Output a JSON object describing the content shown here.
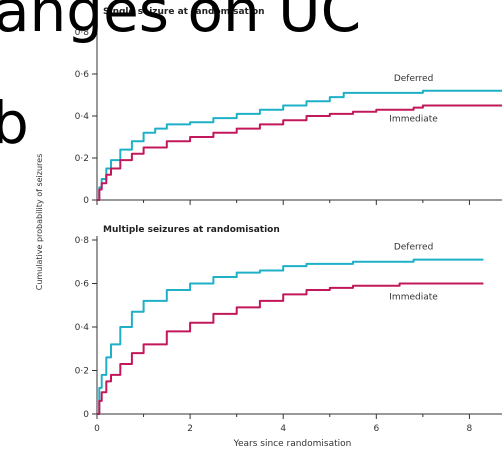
{
  "overlay": {
    "top_text": "anges on UC",
    "left_text": "b"
  },
  "colors": {
    "deferred": "#1fb0c8",
    "immediate": "#c2185b",
    "axis": "#333333",
    "text": "#333333"
  },
  "chart_data": [
    {
      "type": "line",
      "title": "Single seizure at randomisation",
      "ylabel": "Cumulative probability of seizures",
      "xlabel": "",
      "xlim": [
        0,
        8.7
      ],
      "ylim": [
        0,
        0.8
      ],
      "x_ticks": [
        0,
        2,
        4,
        6,
        8
      ],
      "y_ticks": [
        {
          "value": 0,
          "label": "0"
        },
        {
          "value": 0.2,
          "label": "0·2"
        },
        {
          "value": 0.4,
          "label": "0·4"
        },
        {
          "value": 0.6,
          "label": "0·6"
        },
        {
          "value": 0.8,
          "label": "0·8"
        }
      ],
      "series": [
        {
          "name": "Deferred",
          "color": "#1fb0c8",
          "points": [
            [
              0,
              0
            ],
            [
              0.05,
              0.06
            ],
            [
              0.1,
              0.1
            ],
            [
              0.2,
              0.15
            ],
            [
              0.3,
              0.19
            ],
            [
              0.5,
              0.24
            ],
            [
              0.75,
              0.28
            ],
            [
              1,
              0.32
            ],
            [
              1.25,
              0.34
            ],
            [
              1.5,
              0.36
            ],
            [
              2,
              0.37
            ],
            [
              2.5,
              0.39
            ],
            [
              3,
              0.41
            ],
            [
              3.5,
              0.43
            ],
            [
              4,
              0.45
            ],
            [
              4.5,
              0.47
            ],
            [
              5,
              0.49
            ],
            [
              5.3,
              0.51
            ],
            [
              6,
              0.51
            ],
            [
              7,
              0.52
            ],
            [
              8,
              0.52
            ],
            [
              8.7,
              0.52
            ]
          ]
        },
        {
          "name": "Immediate",
          "color": "#c2185b",
          "points": [
            [
              0,
              0
            ],
            [
              0.05,
              0.05
            ],
            [
              0.1,
              0.08
            ],
            [
              0.2,
              0.12
            ],
            [
              0.3,
              0.15
            ],
            [
              0.5,
              0.19
            ],
            [
              0.75,
              0.22
            ],
            [
              1,
              0.25
            ],
            [
              1.5,
              0.28
            ],
            [
              2,
              0.3
            ],
            [
              2.5,
              0.32
            ],
            [
              3,
              0.34
            ],
            [
              3.5,
              0.36
            ],
            [
              4,
              0.38
            ],
            [
              4.5,
              0.4
            ],
            [
              5,
              0.41
            ],
            [
              5.5,
              0.42
            ],
            [
              6,
              0.43
            ],
            [
              6.8,
              0.44
            ],
            [
              7,
              0.45
            ],
            [
              8,
              0.45
            ],
            [
              8.7,
              0.45
            ]
          ]
        }
      ]
    },
    {
      "type": "line",
      "title": "Multiple seizures at randomisation",
      "ylabel": "",
      "xlabel": "Years since randomisation",
      "xlim": [
        0,
        8.7
      ],
      "ylim": [
        0,
        0.8
      ],
      "x_ticks": [
        0,
        2,
        4,
        6,
        8
      ],
      "y_ticks": [
        {
          "value": 0,
          "label": "0"
        },
        {
          "value": 0.2,
          "label": "0·2"
        },
        {
          "value": 0.4,
          "label": "0·4"
        },
        {
          "value": 0.6,
          "label": "0·6"
        },
        {
          "value": 0.8,
          "label": "0·8"
        }
      ],
      "series": [
        {
          "name": "Deferred",
          "color": "#1fb0c8",
          "points": [
            [
              0,
              0
            ],
            [
              0.05,
              0.12
            ],
            [
              0.1,
              0.18
            ],
            [
              0.2,
              0.26
            ],
            [
              0.3,
              0.32
            ],
            [
              0.5,
              0.4
            ],
            [
              0.75,
              0.47
            ],
            [
              1,
              0.52
            ],
            [
              1.5,
              0.57
            ],
            [
              2,
              0.6
            ],
            [
              2.5,
              0.63
            ],
            [
              3,
              0.65
            ],
            [
              3.5,
              0.66
            ],
            [
              4,
              0.68
            ],
            [
              4.5,
              0.69
            ],
            [
              5,
              0.69
            ],
            [
              5.5,
              0.7
            ],
            [
              6,
              0.7
            ],
            [
              6.5,
              0.7
            ],
            [
              6.8,
              0.71
            ],
            [
              7.5,
              0.71
            ],
            [
              8.3,
              0.71
            ]
          ]
        },
        {
          "name": "Immediate",
          "color": "#c2185b",
          "points": [
            [
              0,
              0
            ],
            [
              0.05,
              0.06
            ],
            [
              0.1,
              0.1
            ],
            [
              0.2,
              0.15
            ],
            [
              0.3,
              0.18
            ],
            [
              0.5,
              0.23
            ],
            [
              0.75,
              0.28
            ],
            [
              1,
              0.32
            ],
            [
              1.5,
              0.38
            ],
            [
              2,
              0.42
            ],
            [
              2.5,
              0.46
            ],
            [
              3,
              0.49
            ],
            [
              3.5,
              0.52
            ],
            [
              4,
              0.55
            ],
            [
              4.5,
              0.57
            ],
            [
              5,
              0.58
            ],
            [
              5.5,
              0.59
            ],
            [
              6,
              0.59
            ],
            [
              6.5,
              0.6
            ],
            [
              7,
              0.6
            ],
            [
              8.3,
              0.6
            ]
          ]
        }
      ]
    }
  ]
}
